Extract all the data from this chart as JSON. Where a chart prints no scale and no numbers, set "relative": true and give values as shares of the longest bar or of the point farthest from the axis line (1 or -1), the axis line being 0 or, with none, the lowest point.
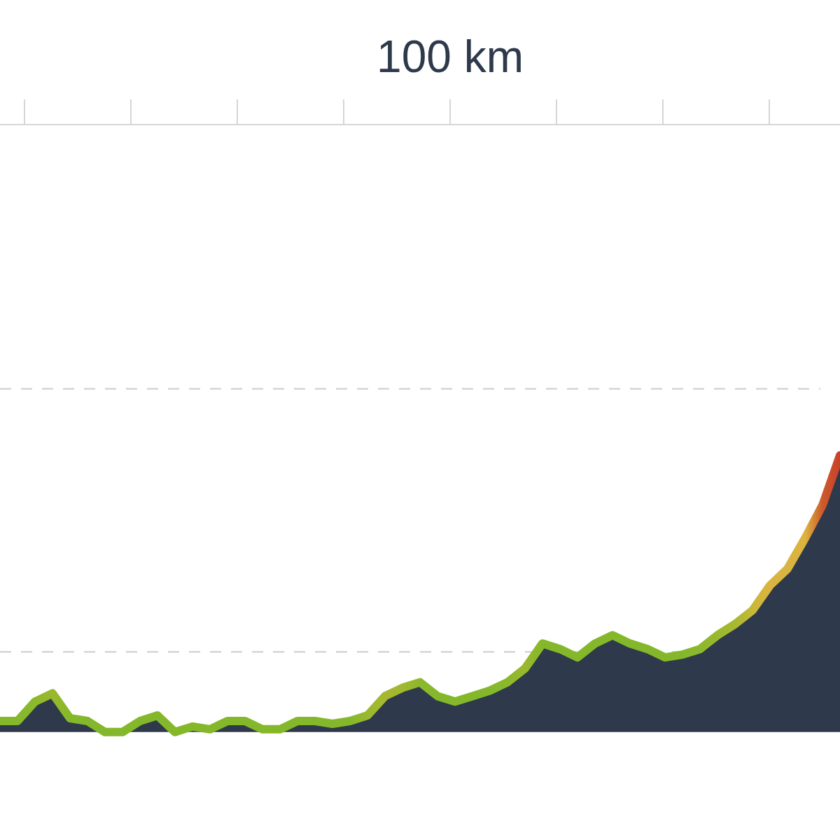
{
  "chart_data": {
    "type": "area",
    "relative": true,
    "annotations": [
      "100 km"
    ],
    "ref_lines": [
      {
        "axis": "y",
        "value": 0.29,
        "color": "#cccccc",
        "line_style": "dashed"
      },
      {
        "axis": "y",
        "value": 1.24,
        "color": "#cccccc",
        "line_style": "dashed"
      }
    ],
    "categories": [
      null,
      null,
      null,
      null,
      null,
      null,
      null,
      null,
      null,
      null,
      null,
      null,
      null,
      null,
      null,
      null,
      null,
      null,
      null,
      null,
      null,
      null,
      null,
      null,
      null,
      null,
      null,
      null,
      null,
      null,
      null,
      null,
      null,
      null,
      null,
      null,
      null,
      null,
      null,
      null,
      null,
      null,
      null,
      null,
      null,
      null,
      null,
      null,
      null
    ],
    "series": [
      {
        "color": "#84b82a",
        "values": [
          0.04,
          0.04,
          0.11,
          0.14,
          0.05,
          0.04,
          0,
          0,
          0.04,
          0.06,
          0,
          0.02,
          0.01,
          0.04,
          0.04,
          0.01,
          0.01,
          0.04,
          0.04,
          0.03,
          0.04,
          0.06,
          0.13,
          0.16,
          0.18,
          0.13,
          0.11,
          0.13,
          0.15,
          0.18,
          0.23,
          0.32,
          0.3,
          0.27,
          0.32,
          0.35,
          0.32,
          0.3,
          0.27,
          0.28,
          0.3,
          0.35,
          0.39,
          0.44,
          0.53,
          0.59,
          0.7,
          0.82,
          1
        ],
        "colors": [
          "#84b82a",
          "#84b82a",
          "#8cb82c",
          "#9ab82e",
          "#84b82a",
          "#84b82a",
          "#84b82a",
          "#84b82a",
          "#84b82a",
          "#84b82a",
          "#84b82a",
          "#84b82a",
          "#84b82a",
          "#84b82a",
          "#84b82a",
          "#84b82a",
          "#84b82a",
          "#84b82a",
          "#84b82a",
          "#84b82a",
          "#84b82a",
          "#9ab82e",
          "#a8b830",
          "#a0b82e",
          "#8cb82c",
          "#84b82a",
          "#84b82a",
          "#84b82a",
          "#84b82a",
          "#8cb82c",
          "#9ab82e",
          "#84b82a",
          "#84b82a",
          "#84b82a",
          "#84b82a",
          "#84b82a",
          "#84b82a",
          "#84b82a",
          "#84b82a",
          "#84b82a",
          "#8cb82c",
          "#9ab82e",
          "#a8b830",
          "#c8b838",
          "#dcb440",
          "#d8b440",
          "#dcb440",
          "#cc5a2c",
          "#c8402a"
        ]
      }
    ]
  }
}
